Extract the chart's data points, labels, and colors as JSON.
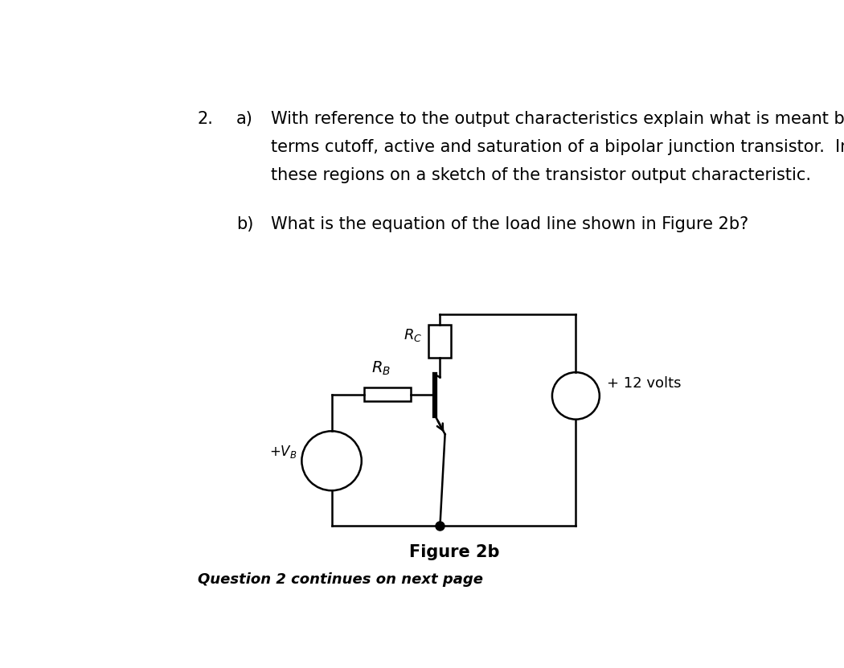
{
  "bg_color": "#ffffff",
  "text_color": "#000000",
  "question_num": "2.",
  "part_a_label": "a)",
  "part_a_line1": "With reference to the output characteristics explain what is meant by the",
  "part_a_line2": "terms cutoff, active and saturation of a bipolar junction transistor.  Indicate",
  "part_a_line3": "these regions on a sketch of the transistor output characteristic.",
  "part_b_label": "b)",
  "part_b_text": "What is the equation of the load line shown in Figure 2b?",
  "figure_label": "Figure 2b",
  "footer_text": "Question 2 continues on next page",
  "label_Rc": "$R_C$",
  "label_RB": "$R_B$",
  "label_VB": "$+V_B$",
  "label_12v": "+ 12 volts",
  "line_color": "#000000",
  "line_width": 1.8,
  "font_size_body": 15,
  "font_size_labels": 13,
  "font_size_figure": 14,
  "font_size_footer": 13
}
